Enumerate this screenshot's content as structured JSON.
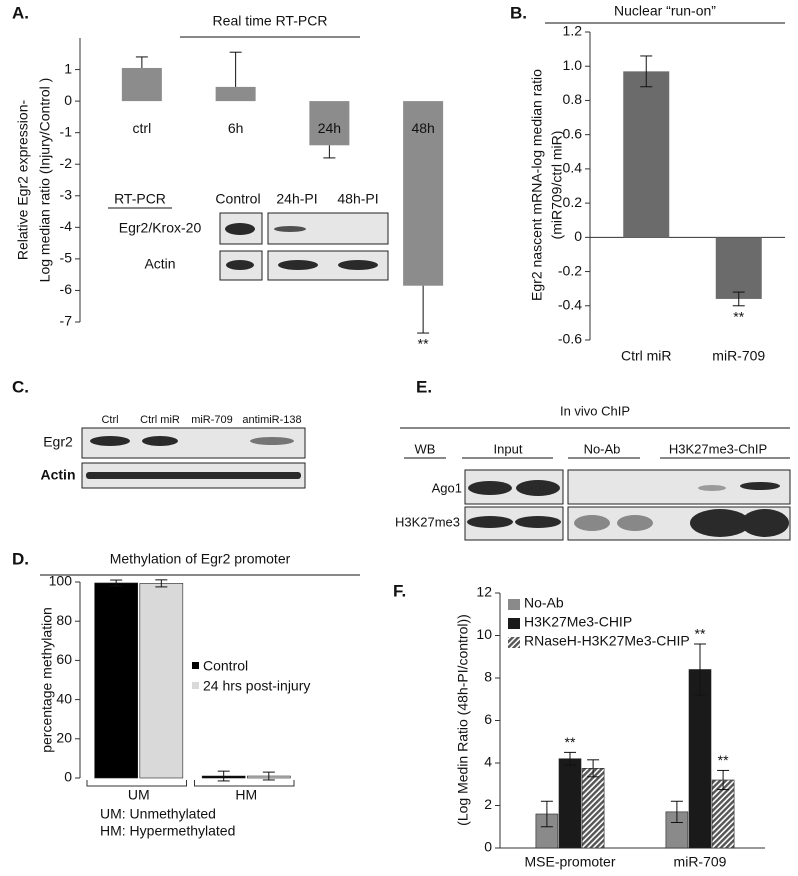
{
  "chart_data": [
    {
      "type": "bar",
      "panel_label": "A.",
      "title": "Real time RT-PCR",
      "ylabel": [
        "Relative Egr2 expression-",
        "Log median ratio (Injury/Control )"
      ],
      "categories": [
        "ctrl",
        "6h",
        "24h",
        "48h"
      ],
      "values": [
        1.05,
        0.45,
        -1.4,
        -5.85
      ],
      "errors": [
        0.35,
        1.1,
        0.4,
        1.5
      ],
      "error_bars": "outward",
      "color": "#8c8c8c",
      "ylim": [
        -7,
        2
      ],
      "yticks": [
        -7,
        -6,
        -5,
        -4,
        -3,
        -2,
        -1,
        0,
        1
      ],
      "annotations": [
        "**"
      ],
      "inset": {
        "header": "RT-PCR",
        "lanes": [
          "Control",
          "24h-PI",
          "48h-PI"
        ],
        "rows": [
          "Egr2/Krox-20",
          "Actin"
        ]
      }
    },
    {
      "type": "bar",
      "panel_label": "B.",
      "title": "Nuclear “run-on”",
      "ylabel": [
        "Egr2 nascent mRNA-log median ratio",
        "(miR709/ctrl miR)"
      ],
      "categories": [
        "Ctrl miR",
        "miR-709"
      ],
      "values": [
        0.97,
        -0.36
      ],
      "errors": [
        0.09,
        0.04
      ],
      "error_bars": "both",
      "color": "#6b6b6b",
      "zero_line": true,
      "ylim": [
        -0.6,
        1.2
      ],
      "yticks": [
        -0.6,
        -0.4,
        -0.2,
        0,
        0.2,
        0.4,
        0.6,
        0.8,
        {
          "value": 1,
          "label": "1.0"
        },
        1.2
      ],
      "annotations": [
        "**"
      ]
    },
    {
      "type": "bar",
      "panel_label": "D.",
      "title": "Methylation of Egr2 promoter",
      "ylabel": [
        "percentage methylation"
      ],
      "categories": [
        "UM",
        "HM"
      ],
      "series": [
        {
          "name": "Control",
          "color": "#000000",
          "values": [
            99.5,
            1
          ],
          "errors": [
            1.5,
            2.5
          ]
        },
        {
          "name": "24 hrs post-injury",
          "color": "#d9d9d9",
          "values": [
            99.3,
            1
          ],
          "errors": [
            1.8,
            2
          ]
        }
      ],
      "error_bars": "both",
      "ylim": [
        0,
        100
      ],
      "yticks": [
        0,
        20,
        40,
        60,
        80,
        100
      ],
      "notes": [
        "UM: Unmethylated",
        "HM: Hypermethylated"
      ]
    },
    {
      "type": "bar",
      "panel_label": "F.",
      "ylabel": [
        "(Log Medin Ratio (48h-PI/control))"
      ],
      "categories": [
        "MSE-promoter",
        "miR-709"
      ],
      "series": [
        {
          "name": "No-Ab",
          "color": "#8a8a8a",
          "values": [
            1.6,
            1.7
          ],
          "errors": [
            0.6,
            0.5
          ]
        },
        {
          "name": "H3K27Me3-CHIP",
          "color": "#1a1a1a",
          "values": [
            4.2,
            8.4
          ],
          "errors": [
            0.3,
            1.2
          ]
        },
        {
          "name": "RNaseH-H3K27Me3-CHIP",
          "color": "#555555",
          "hatch": true,
          "values": [
            3.75,
            3.2
          ],
          "errors": [
            0.4,
            0.45
          ]
        }
      ],
      "error_bars": "both",
      "ylim": [
        0,
        12
      ],
      "yticks": [
        0,
        2,
        4,
        6,
        8,
        10,
        12
      ],
      "annotations": [
        "**",
        "**",
        "**"
      ]
    }
  ],
  "blots": {
    "C": {
      "panel_label": "C.",
      "lanes": [
        "Ctrl",
        "Ctrl miR",
        "miR-709",
        "antimiR-138"
      ],
      "rows": [
        "Egr2",
        "Actin"
      ]
    },
    "E": {
      "panel_label": "E.",
      "title": "In vivo ChIP",
      "lanes": [
        "WB",
        "Input",
        "No-Ab",
        "H3K27me3-ChIP"
      ],
      "rows": [
        "Ago1",
        "H3K27me3"
      ]
    }
  }
}
